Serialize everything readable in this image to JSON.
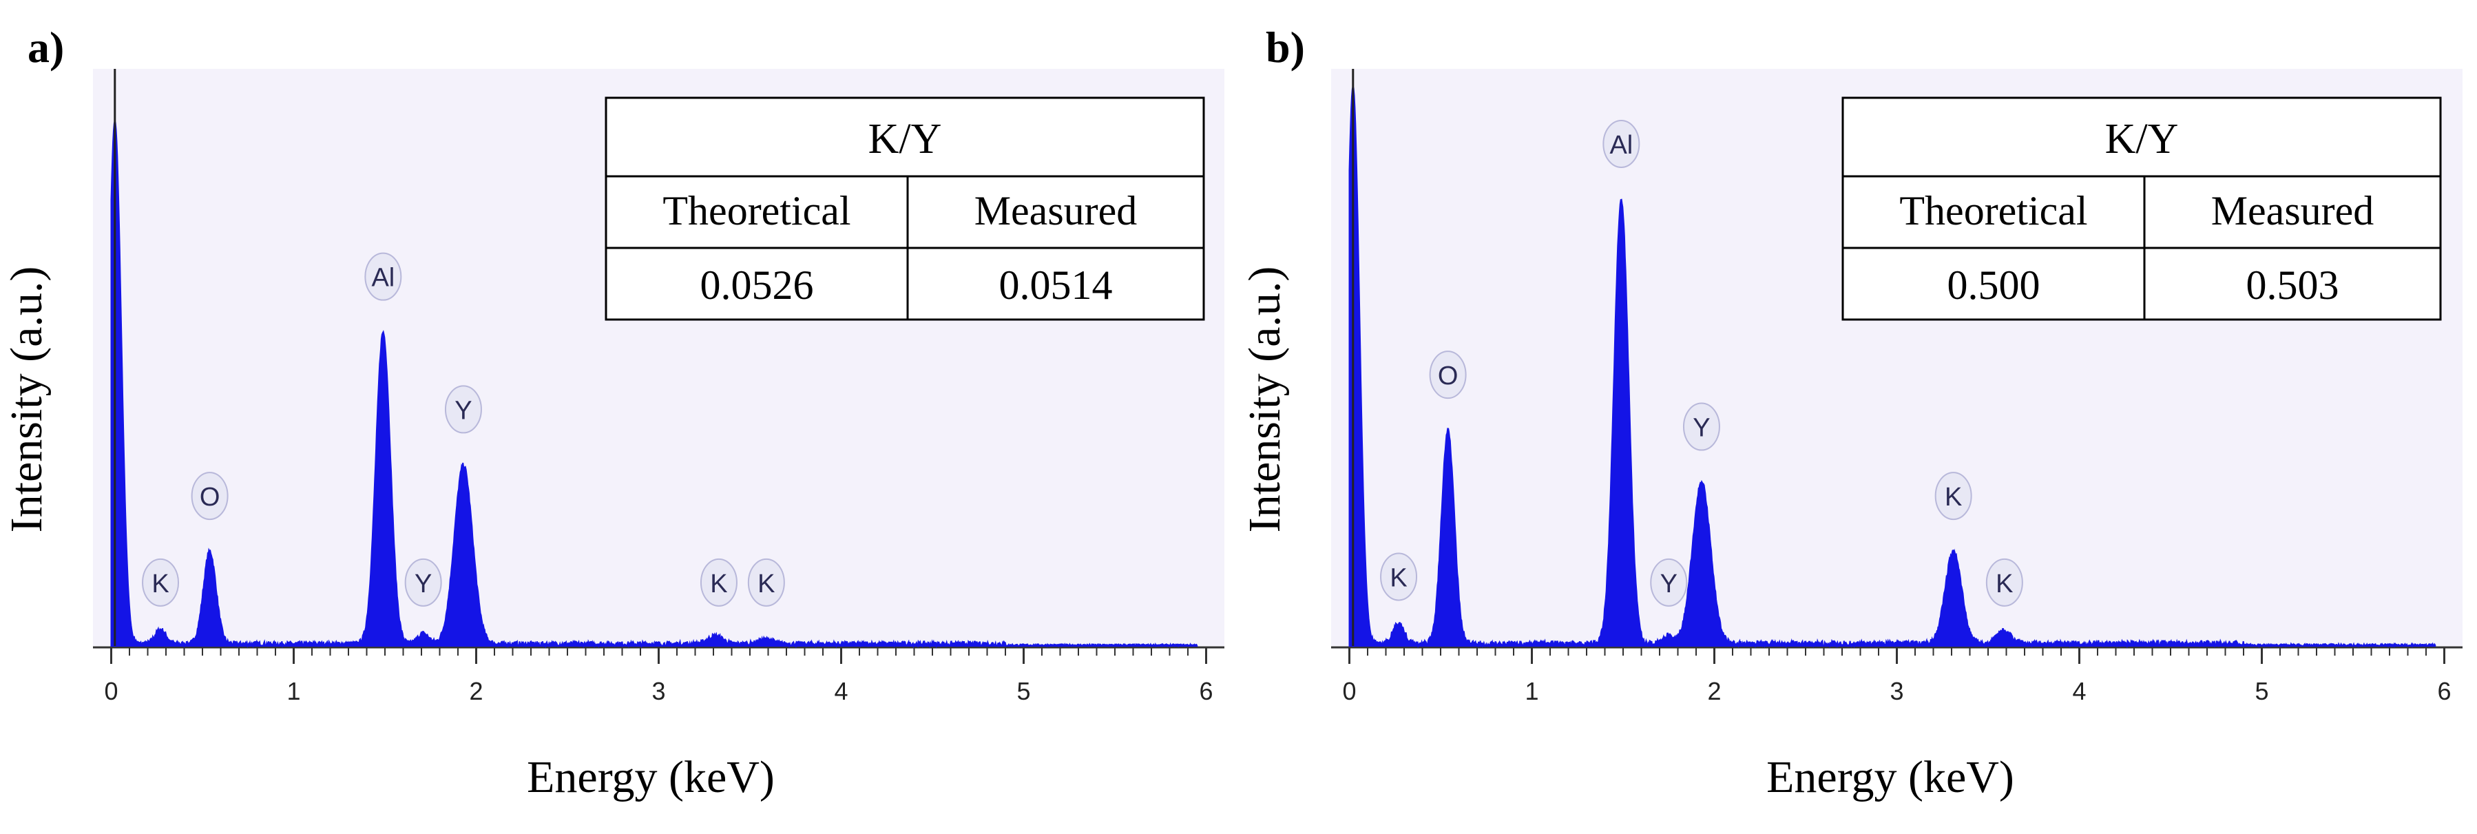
{
  "figure": {
    "x_axis_label": "Energy (keV)",
    "y_axis_label": "Intensity (a.u.)",
    "colors": {
      "plot_bg": "#f4f2fb",
      "peak_fill": "#1414e6",
      "axis": "#333333",
      "badge_fill": "#e8e8f5",
      "badge_stroke": "#b8b8da",
      "badge_text": "#2a2a55"
    }
  },
  "chart_data": [
    {
      "panel": "a)",
      "type": "area",
      "title": "",
      "xlabel": "Energy (keV)",
      "ylabel": "Intensity (a.u.)",
      "xlim": [
        -0.1,
        6.1
      ],
      "ylim": [
        0,
        100
      ],
      "x_ticks": [
        "0",
        "1",
        "2",
        "3",
        "4",
        "5",
        "6"
      ],
      "peaks": [
        {
          "x": 0.02,
          "height": 91,
          "width": 0.035
        },
        {
          "x": 0.27,
          "height": 2.5,
          "width": 0.03
        },
        {
          "x": 0.54,
          "height": 16,
          "width": 0.035
        },
        {
          "x": 1.49,
          "height": 54,
          "width": 0.04
        },
        {
          "x": 1.71,
          "height": 1.8,
          "width": 0.03
        },
        {
          "x": 1.93,
          "height": 31,
          "width": 0.05
        },
        {
          "x": 3.31,
          "height": 1.4,
          "width": 0.04
        },
        {
          "x": 3.59,
          "height": 0.8,
          "width": 0.04
        }
      ],
      "baseline_noise": 0.8,
      "element_labels": [
        {
          "x": 0.27,
          "y": 11,
          "label": "K"
        },
        {
          "x": 0.54,
          "y": 26,
          "label": "O"
        },
        {
          "x": 1.49,
          "y": 64,
          "label": "Al"
        },
        {
          "x": 1.71,
          "y": 11,
          "label": "Y"
        },
        {
          "x": 1.93,
          "y": 41,
          "label": "Y"
        },
        {
          "x": 3.33,
          "y": 11,
          "label": "K"
        },
        {
          "x": 3.59,
          "y": 11,
          "label": "K"
        }
      ],
      "ratio_table": {
        "title": "K/Y",
        "headers": [
          "Theoretical",
          "Measured"
        ],
        "values": [
          "0.0526",
          "0.0514"
        ]
      }
    },
    {
      "panel": "b)",
      "type": "area",
      "title": "",
      "xlabel": "Energy (keV)",
      "ylabel": "Intensity (a.u.)",
      "xlim": [
        -0.1,
        6.1
      ],
      "ylim": [
        0,
        100
      ],
      "x_ticks": [
        "0",
        "1",
        "2",
        "3",
        "4",
        "5",
        "6"
      ],
      "peaks": [
        {
          "x": 0.02,
          "height": 97,
          "width": 0.035
        },
        {
          "x": 0.27,
          "height": 3.5,
          "width": 0.03
        },
        {
          "x": 0.54,
          "height": 37,
          "width": 0.035
        },
        {
          "x": 1.49,
          "height": 77,
          "width": 0.04
        },
        {
          "x": 1.75,
          "height": 1.3,
          "width": 0.03
        },
        {
          "x": 1.93,
          "height": 28,
          "width": 0.05
        },
        {
          "x": 3.31,
          "height": 16,
          "width": 0.045
        },
        {
          "x": 3.59,
          "height": 2.2,
          "width": 0.04
        }
      ],
      "baseline_noise": 0.9,
      "element_labels": [
        {
          "x": 0.27,
          "y": 12,
          "label": "K"
        },
        {
          "x": 0.54,
          "y": 47,
          "label": "O"
        },
        {
          "x": 1.49,
          "y": 87,
          "label": "Al"
        },
        {
          "x": 1.75,
          "y": 11,
          "label": "Y"
        },
        {
          "x": 1.93,
          "y": 38,
          "label": "Y"
        },
        {
          "x": 3.31,
          "y": 26,
          "label": "K"
        },
        {
          "x": 3.59,
          "y": 11,
          "label": "K"
        }
      ],
      "ratio_table": {
        "title": "K/Y",
        "headers": [
          "Theoretical",
          "Measured"
        ],
        "values": [
          "0.500",
          "0.503"
        ]
      }
    }
  ]
}
